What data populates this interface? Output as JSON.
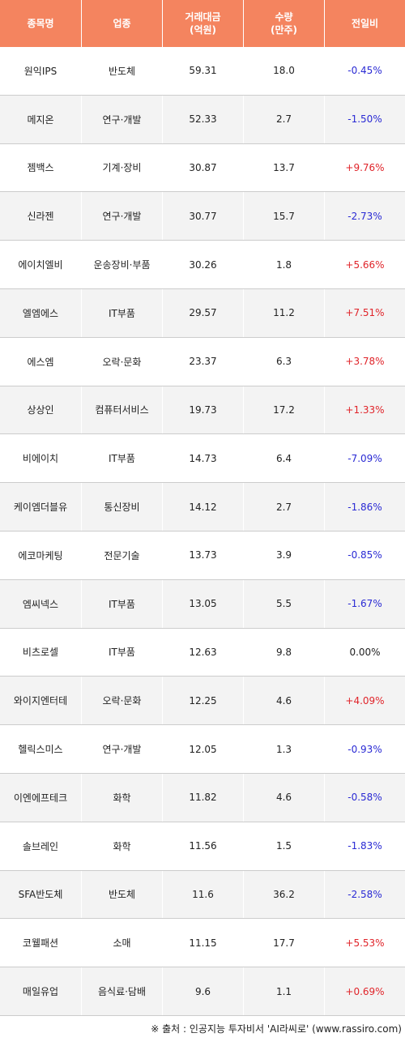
{
  "header": {
    "name": "종목명",
    "sector": "업종",
    "amount": "거래대금\n(억원)",
    "amount_l1": "거래대금",
    "amount_l2": "(억원)",
    "volume_l1": "수량",
    "volume_l2": "(만주)",
    "change": "전일비"
  },
  "rows": [
    {
      "name": "원익IPS",
      "sector": "반도체",
      "amount": "59.31",
      "volume": "18.0",
      "change": "-0.45%",
      "dir": "neg"
    },
    {
      "name": "메지온",
      "sector": "연구·개발",
      "amount": "52.33",
      "volume": "2.7",
      "change": "-1.50%",
      "dir": "neg"
    },
    {
      "name": "젬백스",
      "sector": "기계·장비",
      "amount": "30.87",
      "volume": "13.7",
      "change": "+9.76%",
      "dir": "pos"
    },
    {
      "name": "신라젠",
      "sector": "연구·개발",
      "amount": "30.77",
      "volume": "15.7",
      "change": "-2.73%",
      "dir": "neg"
    },
    {
      "name": "에이치엘비",
      "sector": "운송장비·부품",
      "amount": "30.26",
      "volume": "1.8",
      "change": "+5.66%",
      "dir": "pos"
    },
    {
      "name": "엘엠에스",
      "sector": "IT부품",
      "amount": "29.57",
      "volume": "11.2",
      "change": "+7.51%",
      "dir": "pos"
    },
    {
      "name": "에스엠",
      "sector": "오락·문화",
      "amount": "23.37",
      "volume": "6.3",
      "change": "+3.78%",
      "dir": "pos"
    },
    {
      "name": "상상인",
      "sector": "컴퓨터서비스",
      "amount": "19.73",
      "volume": "17.2",
      "change": "+1.33%",
      "dir": "pos"
    },
    {
      "name": "비에이치",
      "sector": "IT부품",
      "amount": "14.73",
      "volume": "6.4",
      "change": "-7.09%",
      "dir": "neg"
    },
    {
      "name": "케이엠더블유",
      "sector": "통신장비",
      "amount": "14.12",
      "volume": "2.7",
      "change": "-1.86%",
      "dir": "neg"
    },
    {
      "name": "에코마케팅",
      "sector": "전문기술",
      "amount": "13.73",
      "volume": "3.9",
      "change": "-0.85%",
      "dir": "neg"
    },
    {
      "name": "엠씨넥스",
      "sector": "IT부품",
      "amount": "13.05",
      "volume": "5.5",
      "change": "-1.67%",
      "dir": "neg"
    },
    {
      "name": "비츠로셀",
      "sector": "IT부품",
      "amount": "12.63",
      "volume": "9.8",
      "change": "0.00%",
      "dir": "zero"
    },
    {
      "name": "와이지엔터테",
      "sector": "오락·문화",
      "amount": "12.25",
      "volume": "4.6",
      "change": "+4.09%",
      "dir": "pos"
    },
    {
      "name": "헬릭스미스",
      "sector": "연구·개발",
      "amount": "12.05",
      "volume": "1.3",
      "change": "-0.93%",
      "dir": "neg"
    },
    {
      "name": "이엔에프테크",
      "sector": "화학",
      "amount": "11.82",
      "volume": "4.6",
      "change": "-0.58%",
      "dir": "neg"
    },
    {
      "name": "솔브레인",
      "sector": "화학",
      "amount": "11.56",
      "volume": "1.5",
      "change": "-1.83%",
      "dir": "neg"
    },
    {
      "name": "SFA반도체",
      "sector": "반도체",
      "amount": "11.6",
      "volume": "36.2",
      "change": "-2.58%",
      "dir": "neg"
    },
    {
      "name": "코웰패션",
      "sector": "소매",
      "amount": "11.15",
      "volume": "17.7",
      "change": "+5.53%",
      "dir": "pos"
    },
    {
      "name": "매일유업",
      "sector": "음식료·담배",
      "amount": "9.6",
      "volume": "1.1",
      "change": "+0.69%",
      "dir": "pos"
    }
  ],
  "colors": {
    "header_bg": "#f4845f",
    "positive": "#e0242a",
    "negative": "#2a2ad4"
  },
  "footer": "※ 출처 : 인공지능 투자비서 'AI라씨로' (www.rassiro.com)"
}
